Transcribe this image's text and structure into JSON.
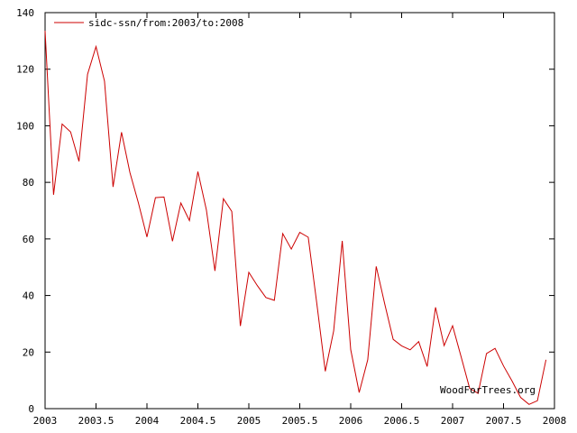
{
  "chart_data": {
    "type": "line",
    "title": "",
    "xlabel": "",
    "ylabel": "",
    "xlim": [
      2003,
      2008
    ],
    "ylim": [
      0,
      140
    ],
    "grid": false,
    "legend_position": "top-left",
    "x_ticks": [
      2003,
      2003.5,
      2004,
      2004.5,
      2005,
      2005.5,
      2006,
      2006.5,
      2007,
      2007.5,
      2008
    ],
    "x_tick_labels": [
      "2003",
      "2003.5",
      "2004",
      "2004.5",
      "2005",
      "2005.5",
      "2006",
      "2006.5",
      "2007",
      "2007.5",
      "2008"
    ],
    "y_ticks": [
      0,
      20,
      40,
      60,
      80,
      100,
      120,
      140
    ],
    "y_tick_labels": [
      "0",
      "20",
      "40",
      "60",
      "80",
      "100",
      "120",
      "140"
    ],
    "watermark": "WoodForTrees.org",
    "series": [
      {
        "name": "sidc-ssn/from:2003/to:2008",
        "color": "#cc0000",
        "x": [
          2003.0,
          2003.083,
          2003.167,
          2003.25,
          2003.333,
          2003.417,
          2003.5,
          2003.583,
          2003.667,
          2003.75,
          2003.833,
          2003.917,
          2004.0,
          2004.083,
          2004.167,
          2004.25,
          2004.333,
          2004.417,
          2004.5,
          2004.583,
          2004.667,
          2004.75,
          2004.833,
          2004.917,
          2005.0,
          2005.083,
          2005.167,
          2005.25,
          2005.333,
          2005.417,
          2005.5,
          2005.583,
          2005.667,
          2005.75,
          2005.833,
          2005.917,
          2006.0,
          2006.083,
          2006.167,
          2006.25,
          2006.333,
          2006.417,
          2006.5,
          2006.583,
          2006.667,
          2006.75,
          2006.833,
          2006.917,
          2007.0,
          2007.083,
          2007.167,
          2007.25,
          2007.333,
          2007.417,
          2007.5,
          2007.583,
          2007.667,
          2007.75,
          2007.833,
          2007.917
        ],
        "y": [
          133.6,
          75.6,
          100.6,
          97.8,
          87.4,
          118.2,
          128.0,
          115.8,
          78.4,
          97.7,
          83.5,
          72.6,
          60.7,
          74.6,
          74.8,
          59.2,
          72.7,
          66.5,
          83.8,
          70.3,
          48.7,
          74.2,
          69.7,
          29.2,
          48.2,
          43.5,
          39.3,
          38.3,
          61.9,
          56.4,
          62.3,
          60.6,
          37.2,
          13.2,
          27.5,
          59.3,
          20.9,
          5.7,
          17.3,
          50.3,
          37.2,
          24.5,
          22.2,
          20.8,
          23.7,
          14.9,
          35.8,
          22.3,
          29.3,
          18.4,
          7.2,
          5.4,
          19.5,
          21.3,
          15.1,
          9.8,
          4.0,
          1.5,
          2.8,
          17.3
        ]
      }
    ]
  }
}
